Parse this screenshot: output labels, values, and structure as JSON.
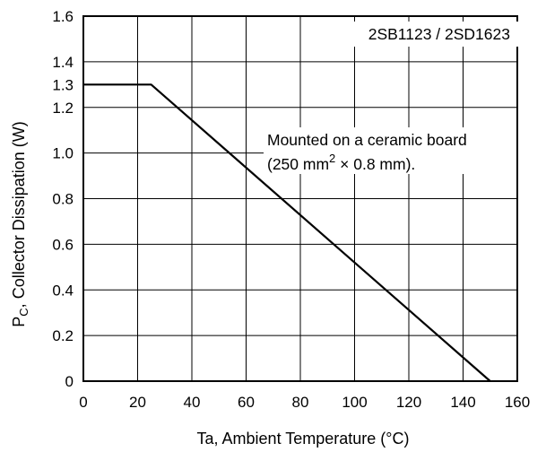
{
  "chart_data": {
    "type": "line",
    "title": "",
    "xlabel": "Ta, Ambient Temperature (°C)",
    "ylabel_main": "P",
    "ylabel_sub": "C",
    "ylabel_rest": ", Collector Dissipation (W)",
    "xlim": [
      0,
      160
    ],
    "ylim": [
      0,
      1.6
    ],
    "grid": true,
    "x_ticks": [
      0,
      20,
      40,
      60,
      80,
      100,
      120,
      140,
      160
    ],
    "x_tick_labels": [
      "0",
      "20",
      "40",
      "60",
      "80",
      "100",
      "120",
      "140",
      "160"
    ],
    "y_ticks": [
      0,
      0.2,
      0.4,
      0.6,
      0.8,
      1.0,
      1.2,
      1.3,
      1.4,
      1.6
    ],
    "y_tick_labels": [
      "0",
      "0.2",
      "0.4",
      "0.6",
      "0.8",
      "1.0",
      "1.2",
      "1.3",
      "1.4",
      "1.6"
    ],
    "y_grid_values": [
      0.2,
      0.4,
      0.6,
      0.8,
      1.0,
      1.2,
      1.4
    ],
    "series": [
      {
        "x": [
          0,
          25,
          150
        ],
        "y": [
          1.3,
          1.3,
          0
        ],
        "color": "#000000"
      }
    ],
    "annotations": {
      "device": "2SB1123 / 2SD1623",
      "mount_line1": "Mounted on a ceramic board",
      "mount_line2_a": "(250 mm",
      "mount_line2_sup": "2",
      "mount_line2_b": " × 0.8 mm)."
    }
  }
}
